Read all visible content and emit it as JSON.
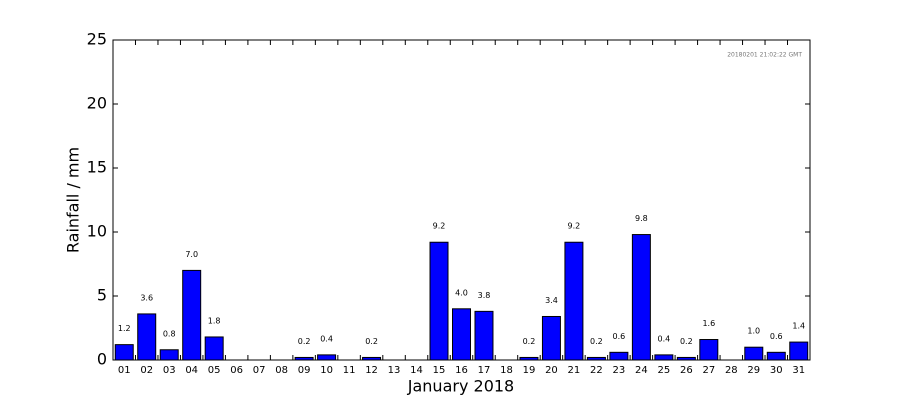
{
  "chart_data": {
    "type": "bar",
    "x_label": "January 2018",
    "y_label": "Rainfall / mm",
    "annotation": "20180201 21:02:22 GMT",
    "categories": [
      "01",
      "02",
      "03",
      "04",
      "05",
      "06",
      "07",
      "08",
      "09",
      "10",
      "11",
      "12",
      "13",
      "14",
      "15",
      "16",
      "17",
      "18",
      "19",
      "20",
      "21",
      "22",
      "23",
      "24",
      "25",
      "26",
      "27",
      "28",
      "29",
      "30",
      "31"
    ],
    "values": [
      1.2,
      3.6,
      0.8,
      7.0,
      1.8,
      0,
      0,
      0,
      0.2,
      0.4,
      0,
      0.2,
      0,
      0,
      9.2,
      4.0,
      3.8,
      0,
      0.2,
      3.4,
      9.2,
      0.2,
      0.6,
      9.8,
      0.4,
      0.2,
      1.6,
      0,
      1.0,
      0.6,
      1.4
    ],
    "value_labels": [
      "1.2",
      "3.6",
      "0.8",
      "7.0",
      "1.8",
      null,
      null,
      null,
      "0.2",
      "0.4",
      null,
      "0.2",
      null,
      null,
      "9.2",
      "4.0",
      "3.8",
      null,
      "0.2",
      "3.4",
      "9.2",
      "0.2",
      "0.6",
      "9.8",
      "0.4",
      "0.2",
      "1.6",
      null,
      "1.0",
      "0.6",
      "1.4"
    ],
    "color": "#0000ff",
    "ylim": [
      0,
      25
    ],
    "yticks": [
      0,
      5,
      10,
      15,
      20,
      25
    ],
    "grid": false
  }
}
